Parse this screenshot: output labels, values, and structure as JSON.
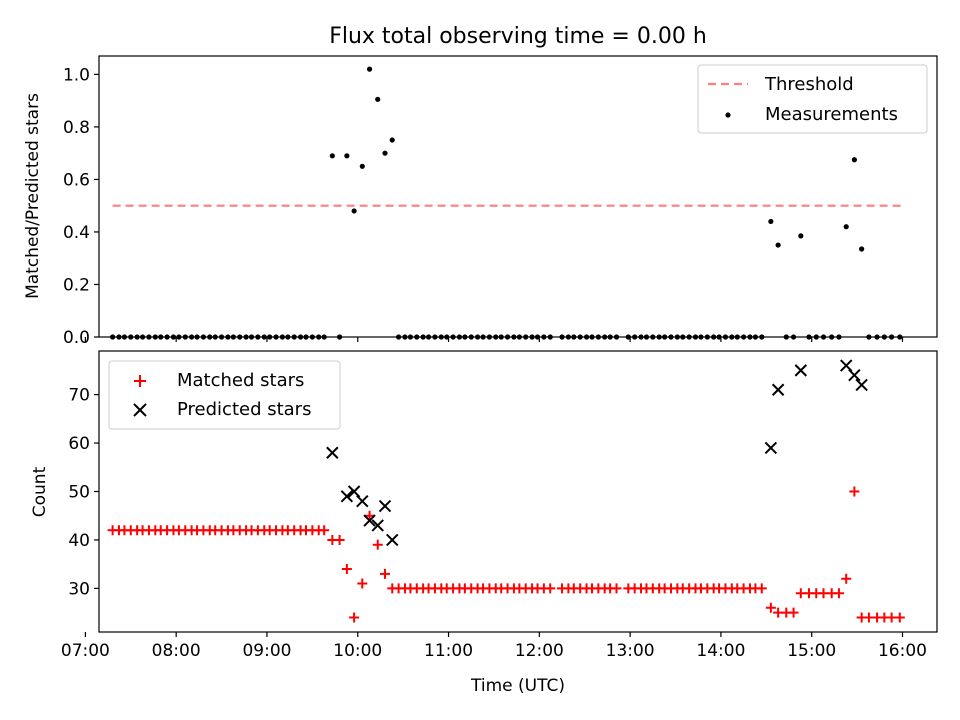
{
  "chart_data": [
    {
      "type": "scatter",
      "title": "Flux total observing time = 0.00 h",
      "xlabel": "",
      "ylabel": "Matched/Predicted stars",
      "xlim": [
        7.15,
        16.38
      ],
      "ylim": [
        0,
        1.07
      ],
      "yticks": [
        "0.0",
        "0.2",
        "0.4",
        "0.6",
        "0.8",
        "1.0"
      ],
      "ytick_values": [
        0,
        0.2,
        0.4,
        0.6,
        0.8,
        1.0
      ],
      "legend_position": "top-right",
      "series": [
        {
          "name": "Threshold",
          "kind": "line",
          "color": "#ff7f7f",
          "x": [
            7.3,
            16.0
          ],
          "y": [
            0.5,
            0.5
          ]
        },
        {
          "name": "Measurements",
          "kind": "point",
          "color": "#000000",
          "x": [
            7.3,
            7.37,
            7.43,
            7.5,
            7.57,
            7.63,
            7.7,
            7.77,
            7.83,
            7.9,
            7.97,
            8.03,
            8.1,
            8.17,
            8.23,
            8.3,
            8.37,
            8.43,
            8.5,
            8.57,
            8.63,
            8.7,
            8.77,
            8.83,
            8.9,
            8.97,
            9.03,
            9.1,
            9.17,
            9.23,
            9.3,
            9.37,
            9.43,
            9.5,
            9.57,
            9.63,
            9.72,
            9.8,
            9.88,
            9.96,
            10.05,
            10.13,
            10.22,
            10.3,
            10.38,
            10.45,
            10.52,
            10.58,
            10.65,
            10.72,
            10.78,
            10.85,
            10.92,
            10.98,
            11.05,
            11.12,
            11.18,
            11.25,
            11.32,
            11.38,
            11.45,
            11.52,
            11.58,
            11.65,
            11.72,
            11.78,
            11.85,
            11.92,
            11.98,
            12.05,
            12.12,
            12.25,
            12.32,
            12.38,
            12.45,
            12.52,
            12.58,
            12.65,
            12.72,
            12.78,
            12.85,
            12.98,
            13.05,
            13.12,
            13.18,
            13.25,
            13.32,
            13.38,
            13.45,
            13.52,
            13.58,
            13.65,
            13.72,
            13.78,
            13.85,
            13.92,
            13.98,
            14.05,
            14.12,
            14.18,
            14.25,
            14.32,
            14.38,
            14.45,
            14.55,
            14.63,
            14.72,
            14.8,
            14.88,
            14.97,
            15.05,
            15.13,
            15.22,
            15.3,
            15.38,
            15.47,
            15.55,
            15.63,
            15.72,
            15.8,
            15.88,
            15.97
          ],
          "y": [
            0,
            0,
            0,
            0,
            0,
            0,
            0,
            0,
            0,
            0,
            0,
            0,
            0,
            0,
            0,
            0,
            0,
            0,
            0,
            0,
            0,
            0,
            0,
            0,
            0,
            0,
            0,
            0,
            0,
            0,
            0,
            0,
            0,
            0,
            0,
            0,
            0.69,
            0,
            0.69,
            0.48,
            0.65,
            1.02,
            0.905,
            0.7,
            0.75,
            0,
            0,
            0,
            0,
            0,
            0,
            0,
            0,
            0,
            0,
            0,
            0,
            0,
            0,
            0,
            0,
            0,
            0,
            0,
            0,
            0,
            0,
            0,
            0,
            0,
            0,
            0,
            0,
            0,
            0,
            0,
            0,
            0,
            0,
            0,
            0,
            0,
            0,
            0,
            0,
            0,
            0,
            0,
            0,
            0,
            0,
            0,
            0,
            0,
            0,
            0,
            0,
            0,
            0,
            0,
            0,
            0,
            0,
            0,
            0.44,
            0.35,
            0,
            0,
            0.385,
            0,
            0,
            0,
            0,
            0,
            0.42,
            0.675,
            0.335,
            0,
            0,
            0,
            0,
            0
          ]
        }
      ]
    },
    {
      "type": "scatter",
      "title": "",
      "xlabel": "Time (UTC)",
      "ylabel": "Count",
      "xlim": [
        7.15,
        16.38
      ],
      "ylim": [
        21,
        79
      ],
      "yticks": [
        "30",
        "40",
        "50",
        "60",
        "70"
      ],
      "ytick_values": [
        30,
        40,
        50,
        60,
        70
      ],
      "xticks": [
        "07:00",
        "08:00",
        "09:00",
        "10:00",
        "11:00",
        "12:00",
        "13:00",
        "14:00",
        "15:00",
        "16:00"
      ],
      "xtick_values": [
        7,
        8,
        9,
        10,
        11,
        12,
        13,
        14,
        15,
        16
      ],
      "legend_position": "top-left",
      "series": [
        {
          "name": "Matched stars",
          "kind": "plus",
          "color": "#ff0000",
          "x": [
            7.3,
            7.37,
            7.43,
            7.5,
            7.57,
            7.63,
            7.7,
            7.77,
            7.83,
            7.9,
            7.97,
            8.03,
            8.1,
            8.17,
            8.23,
            8.3,
            8.37,
            8.43,
            8.5,
            8.57,
            8.63,
            8.7,
            8.77,
            8.83,
            8.9,
            8.97,
            9.03,
            9.1,
            9.17,
            9.23,
            9.3,
            9.37,
            9.43,
            9.5,
            9.57,
            9.63,
            9.72,
            9.8,
            9.88,
            9.96,
            10.05,
            10.13,
            10.22,
            10.3,
            10.38,
            10.45,
            10.52,
            10.58,
            10.65,
            10.72,
            10.78,
            10.85,
            10.92,
            10.98,
            11.05,
            11.12,
            11.18,
            11.25,
            11.32,
            11.38,
            11.45,
            11.52,
            11.58,
            11.65,
            11.72,
            11.78,
            11.85,
            11.92,
            11.98,
            12.05,
            12.12,
            12.25,
            12.32,
            12.38,
            12.45,
            12.52,
            12.58,
            12.65,
            12.72,
            12.78,
            12.85,
            12.98,
            13.05,
            13.12,
            13.18,
            13.25,
            13.32,
            13.38,
            13.45,
            13.52,
            13.58,
            13.65,
            13.72,
            13.78,
            13.85,
            13.92,
            13.98,
            14.05,
            14.12,
            14.18,
            14.25,
            14.32,
            14.38,
            14.45,
            14.55,
            14.63,
            14.72,
            14.8,
            14.88,
            14.97,
            15.05,
            15.13,
            15.22,
            15.3,
            15.38,
            15.47,
            15.55,
            15.63,
            15.72,
            15.8,
            15.88,
            15.97
          ],
          "y": [
            42,
            42,
            42,
            42,
            42,
            42,
            42,
            42,
            42,
            42,
            42,
            42,
            42,
            42,
            42,
            42,
            42,
            42,
            42,
            42,
            42,
            42,
            42,
            42,
            42,
            42,
            42,
            42,
            42,
            42,
            42,
            42,
            42,
            42,
            42,
            42,
            40,
            40,
            34,
            24,
            31,
            45,
            39,
            33,
            30,
            30,
            30,
            30,
            30,
            30,
            30,
            30,
            30,
            30,
            30,
            30,
            30,
            30,
            30,
            30,
            30,
            30,
            30,
            30,
            30,
            30,
            30,
            30,
            30,
            30,
            30,
            30,
            30,
            30,
            30,
            30,
            30,
            30,
            30,
            30,
            30,
            30,
            30,
            30,
            30,
            30,
            30,
            30,
            30,
            30,
            30,
            30,
            30,
            30,
            30,
            30,
            30,
            30,
            30,
            30,
            30,
            30,
            30,
            30,
            26,
            25,
            25,
            25,
            29,
            29,
            29,
            29,
            29,
            29,
            32,
            50,
            24,
            24,
            24,
            24,
            24,
            24
          ]
        },
        {
          "name": "Predicted stars",
          "kind": "x",
          "color": "#000000",
          "x": [
            9.72,
            9.88,
            9.96,
            10.05,
            10.13,
            10.22,
            10.3,
            10.38,
            14.55,
            14.63,
            14.88,
            15.38,
            15.47,
            15.55
          ],
          "y": [
            58,
            49,
            50,
            48,
            44,
            43,
            47,
            40,
            59,
            71,
            75,
            76,
            74,
            72
          ]
        }
      ]
    }
  ]
}
